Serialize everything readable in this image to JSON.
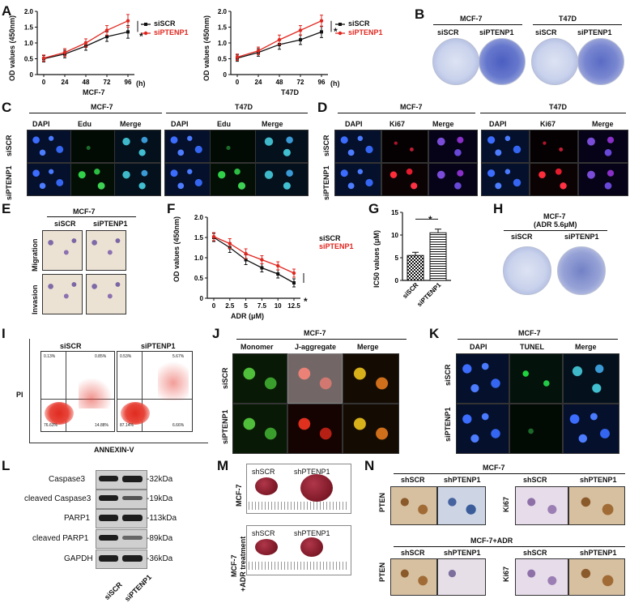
{
  "panels": {
    "A": "A",
    "B": "B",
    "C": "C",
    "D": "D",
    "E": "E",
    "F": "F",
    "G": "G",
    "H": "H",
    "I": "I",
    "J": "J",
    "K": "K",
    "L": "L",
    "M": "M",
    "N": "N"
  },
  "legend": {
    "siSCR": "siSCR",
    "siPTENP1": "siPTENP1"
  },
  "colors": {
    "siSCR": "#111111",
    "siPTENP1": "#e0271f"
  },
  "chart_data": [
    {
      "id": "A-MCF7",
      "type": "line",
      "x": [
        0,
        24,
        48,
        72,
        96
      ],
      "xlabel": "MCF-7",
      "xunit": "(h)",
      "ylabel": "OD values (450nm)",
      "ylim": [
        0,
        2.0
      ],
      "yticks": [
        "0",
        "0.5",
        "1.0",
        "1.5",
        "2.0"
      ],
      "xticks": [
        "0",
        "24",
        "48",
        "72",
        "96"
      ],
      "series": [
        {
          "name": "siSCR",
          "values": [
            0.5,
            0.65,
            0.9,
            1.2,
            1.35
          ],
          "err": [
            0.1,
            0.12,
            0.13,
            0.15,
            0.2
          ]
        },
        {
          "name": "siPTENP1",
          "values": [
            0.52,
            0.7,
            1.0,
            1.4,
            1.7
          ],
          "err": [
            0.1,
            0.12,
            0.13,
            0.15,
            0.2
          ]
        }
      ],
      "annotation": "*"
    },
    {
      "id": "A-T47D",
      "type": "line",
      "x": [
        0,
        24,
        48,
        72,
        96
      ],
      "xlabel": "T47D",
      "xunit": "(h)",
      "ylabel": "OD values (450nm)",
      "ylim": [
        0,
        2.0
      ],
      "yticks": [
        "0",
        "0.5",
        "1.0",
        "1.5",
        "2.0"
      ],
      "xticks": [
        "0",
        "24",
        "48",
        "72",
        "96"
      ],
      "series": [
        {
          "name": "siSCR",
          "values": [
            0.52,
            0.7,
            0.95,
            1.1,
            1.35
          ],
          "err": [
            0.1,
            0.12,
            0.15,
            0.15,
            0.18
          ]
        },
        {
          "name": "siPTENP1",
          "values": [
            0.55,
            0.75,
            1.1,
            1.4,
            1.7
          ],
          "err": [
            0.1,
            0.12,
            0.15,
            0.15,
            0.18
          ]
        }
      ],
      "annotation": "*"
    },
    {
      "id": "F",
      "type": "line",
      "x": [
        0,
        2.5,
        5,
        7.5,
        10,
        12.5
      ],
      "xlabel": "ADR (μM)",
      "ylabel": "OD values (450nm)",
      "ylim": [
        0,
        2.0
      ],
      "yticks": [
        "0",
        "0.5",
        "1.0",
        "1.5",
        "2.0"
      ],
      "xticks": [
        "0",
        "2.5",
        "5",
        "7.5",
        "10",
        "12.5"
      ],
      "series": [
        {
          "name": "siSCR",
          "values": [
            1.5,
            1.25,
            0.95,
            0.75,
            0.6,
            0.38
          ],
          "err": [
            0.1,
            0.12,
            0.12,
            0.1,
            0.1,
            0.1
          ]
        },
        {
          "name": "siPTENP1",
          "values": [
            1.52,
            1.35,
            1.1,
            0.95,
            0.8,
            0.62
          ],
          "err": [
            0.1,
            0.12,
            0.12,
            0.1,
            0.1,
            0.1
          ]
        }
      ],
      "annotation": "*"
    },
    {
      "id": "G",
      "type": "bar",
      "categories": [
        "siSCR",
        "siPTENP1"
      ],
      "values": [
        5.5,
        10.5
      ],
      "err": [
        0.7,
        0.8
      ],
      "ylabel": "IC50 values (μM)",
      "ylim": [
        0,
        15
      ],
      "yticks": [
        "0",
        "5",
        "10",
        "15"
      ],
      "annotation": "*"
    }
  ],
  "B": {
    "cell1": "MCF-7",
    "cell2": "T47D",
    "c1": "siSCR",
    "c2": "siPTENP1"
  },
  "C": {
    "cell1": "MCF-7",
    "cell2": "T47D",
    "cols": [
      "DAPI",
      "Edu",
      "Merge"
    ],
    "rows": [
      "siSCR",
      "siPTENP1"
    ]
  },
  "D": {
    "cell1": "MCF-7",
    "cell2": "T47D",
    "cols": [
      "DAPI",
      "Ki67",
      "Merge"
    ],
    "rows": [
      "siSCR",
      "siPTENP1"
    ]
  },
  "E": {
    "cell": "MCF-7",
    "cols": [
      "siSCR",
      "siPTENP1"
    ],
    "rows": [
      "Migration",
      "Invasion"
    ]
  },
  "H": {
    "cell": "MCF-7",
    "cond": "(ADR 5.6μM)",
    "c1": "siSCR",
    "c2": "siPTENP1"
  },
  "I": {
    "c1": "siSCR",
    "c2": "siPTENP1",
    "ylabel": "PI",
    "xlabel": "ANNEXIN-V",
    "q1": [
      "0.13%",
      "0.85%",
      "76.63%",
      "14.88%"
    ],
    "q2": [
      "0.53%",
      "5.67%",
      "87.14%",
      "6.66%"
    ]
  },
  "J": {
    "cell": "MCF-7",
    "cols": [
      "Monomer",
      "J-aggregate",
      "Merge"
    ],
    "rows": [
      "siSCR",
      "siPTENP1"
    ]
  },
  "K": {
    "cell": "MCF-7",
    "cols": [
      "DAPI",
      "TUNEL",
      "Merge"
    ],
    "rows": [
      "siSCR",
      "siPTENP1"
    ]
  },
  "L": {
    "proteins": [
      "Caspase3",
      "cleaved Caspase3",
      "PARP1",
      "cleaved PARP1",
      "GAPDH"
    ],
    "sizes": [
      "-32kDa",
      "-19kDa",
      "-113kDa",
      "-89kDa",
      "-36kDa"
    ],
    "lanes": [
      "siSCR",
      "siPTENP1"
    ]
  },
  "M": {
    "row1": "MCF-7",
    "row2a": "MCF-7",
    "row2b": "+ADR treatment",
    "c1": "shSCR",
    "c2": "shPTENP1"
  },
  "N": {
    "top": "MCF-7",
    "bottom": "MCF-7+ADR",
    "cols": [
      "shSCR",
      "shPTENP1",
      "shSCR",
      "shPTENP1"
    ],
    "rowlabels": [
      "PTEN",
      "Ki67"
    ]
  }
}
